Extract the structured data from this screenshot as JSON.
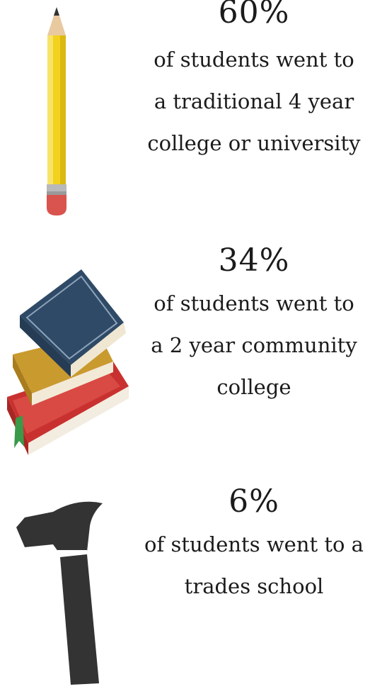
{
  "stats": [
    {
      "icon": "pencil-icon",
      "percent": "60%",
      "lines": [
        "of students went to",
        "a traditional 4 year",
        "college or university"
      ]
    },
    {
      "icon": "books-icon",
      "percent": "34%",
      "lines": [
        "of students went to",
        "a 2 year community",
        "college"
      ]
    },
    {
      "icon": "hammer-icon",
      "percent": "6%",
      "lines": [
        "of students went to a",
        "trades school"
      ]
    }
  ],
  "colors": {
    "pencil_body": "#f2d21c",
    "pencil_eraser": "#d9534f",
    "book_blue": "#2f4a66",
    "book_gold": "#c99a2e",
    "book_red": "#c8312f",
    "hammer": "#333333"
  }
}
